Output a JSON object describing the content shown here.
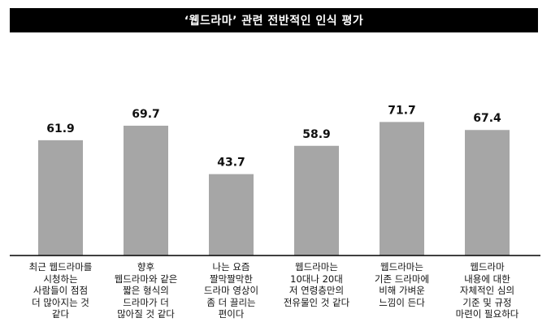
{
  "chart_data": {
    "type": "bar",
    "title": "‘웹드라마’ 관련 전반적인 인식 평가",
    "categories": [
      [
        "최근 웹드라마를",
        "시청하는",
        "사람들이 점점",
        "더 많아지는 것",
        "같다"
      ],
      [
        "향후",
        "웹드라마와 같은",
        "짧은 형식의",
        "드라마가 더",
        "많아질 것 같다"
      ],
      [
        "나는 요즘",
        "짤막짤막한",
        "드라마 영상이",
        "좀 더 끌리는",
        "편이다"
      ],
      [
        "웹드라마는",
        "10대나 20대",
        "저 연령층만의",
        "전유물인 것 같다"
      ],
      [
        "웹드라마는",
        "기존 드라마에",
        "비해 가벼운",
        "느낌이 든다"
      ],
      [
        "웹드라마",
        "내용에 대한",
        "자체적인 심의",
        "기준 및 규정",
        "마련이 필요하다"
      ]
    ],
    "values": [
      61.9,
      69.7,
      43.7,
      58.9,
      71.7,
      67.4
    ],
    "value_labels": [
      "61.9",
      "69.7",
      "43.7",
      "58.9",
      "71.7",
      "67.4"
    ],
    "bar_color": "#a6a6a6",
    "axis_color": "#000000",
    "ylim": [
      0,
      100
    ],
    "grid": false,
    "legend": "none"
  }
}
